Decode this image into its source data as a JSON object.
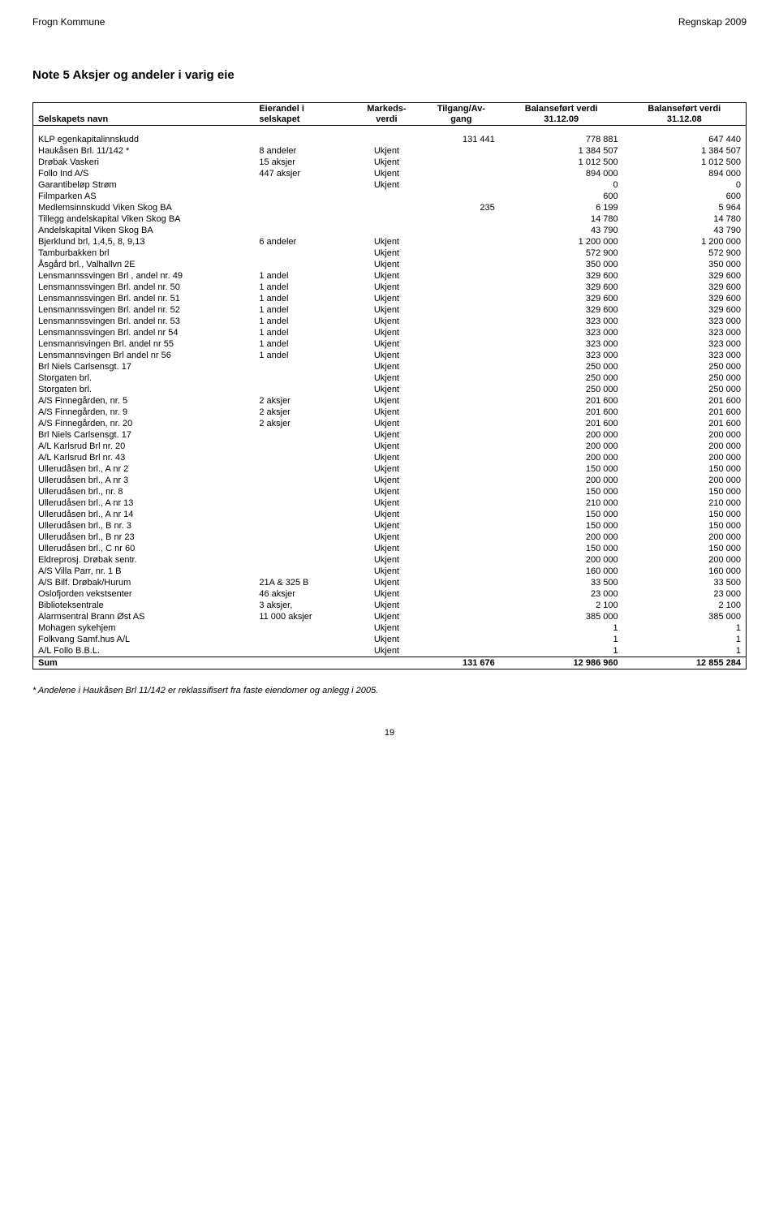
{
  "header": {
    "left": "Frogn Kommune",
    "right": "Regnskap 2009"
  },
  "title": "Note 5   Aksjer og andeler i varig eie",
  "columns": {
    "name": {
      "l1": "",
      "l2": "Selskapets navn"
    },
    "eier": {
      "l1": "Eierandel i",
      "l2": "selskapet"
    },
    "mark": {
      "l1": "Markeds-",
      "l2": "verdi"
    },
    "tilg": {
      "l1": "Tilgang/Av-",
      "l2": "gang"
    },
    "bal1": {
      "l1": "Balanseført verdi",
      "l2": "31.12.09"
    },
    "bal2": {
      "l1": "Balanseført verdi",
      "l2": "31.12.08"
    }
  },
  "rows": [
    {
      "name": "KLP egenkapitalinnskudd",
      "eier": "",
      "mark": "",
      "tilg": "131 441",
      "bal1": "778 881",
      "bal2": "647 440"
    },
    {
      "name": "Haukåsen Brl. 11/142  *",
      "eier": "8 andeler",
      "mark": "Ukjent",
      "tilg": "",
      "bal1": "1 384 507",
      "bal2": "1 384 507"
    },
    {
      "name": "Drøbak Vaskeri",
      "eier": "15 aksjer",
      "mark": "Ukjent",
      "tilg": "",
      "bal1": "1 012 500",
      "bal2": "1 012 500"
    },
    {
      "name": "Follo Ind A/S",
      "eier": "447 aksjer",
      "mark": "Ukjent",
      "tilg": "",
      "bal1": "894 000",
      "bal2": "894 000"
    },
    {
      "name": "Garantibeløp Strøm",
      "eier": "",
      "mark": "Ukjent",
      "tilg": "",
      "bal1": "0",
      "bal2": "0"
    },
    {
      "name": "Filmparken AS",
      "eier": "",
      "mark": "",
      "tilg": "",
      "bal1": "600",
      "bal2": "600"
    },
    {
      "name": "Medlemsinnskudd Viken Skog BA",
      "eier": "",
      "mark": "",
      "tilg": "235",
      "bal1": "6 199",
      "bal2": "5 964"
    },
    {
      "name": "Tillegg andelskapital Viken Skog BA",
      "eier": "",
      "mark": "",
      "tilg": "",
      "bal1": "14 780",
      "bal2": "14 780"
    },
    {
      "name": "Andelskapital Viken Skog BA",
      "eier": "",
      "mark": "",
      "tilg": "",
      "bal1": "43 790",
      "bal2": "43 790"
    },
    {
      "name": "Bjerklund brl, 1,4,5, 8, 9,13",
      "eier": "6 andeler",
      "mark": "Ukjent",
      "tilg": "",
      "bal1": "1 200 000",
      "bal2": "1 200 000"
    },
    {
      "name": "Tamburbakken brl",
      "eier": "",
      "mark": "Ukjent",
      "tilg": "",
      "bal1": "572 900",
      "bal2": "572 900"
    },
    {
      "name": "Åsgård brl., Valhallvn 2E",
      "eier": "",
      "mark": "Ukjent",
      "tilg": "",
      "bal1": "350 000",
      "bal2": "350 000"
    },
    {
      "name": "Lensmannssvingen Brl , andel nr. 49",
      "eier": "1 andel",
      "mark": "Ukjent",
      "tilg": "",
      "bal1": "329 600",
      "bal2": "329 600"
    },
    {
      "name": "Lensmannssvingen Brl. andel nr. 50",
      "eier": "1 andel",
      "mark": "Ukjent",
      "tilg": "",
      "bal1": "329 600",
      "bal2": "329 600"
    },
    {
      "name": "Lensmannssvingen Brl. andel nr. 51",
      "eier": "1 andel",
      "mark": "Ukjent",
      "tilg": "",
      "bal1": "329 600",
      "bal2": "329 600"
    },
    {
      "name": "Lensmannssvingen Brl. andel nr. 52",
      "eier": "1 andel",
      "mark": "Ukjent",
      "tilg": "",
      "bal1": "329 600",
      "bal2": "329 600"
    },
    {
      "name": "Lensmannssvingen Brl. andel nr. 53",
      "eier": "1 andel",
      "mark": "Ukjent",
      "tilg": "",
      "bal1": "323 000",
      "bal2": "323 000"
    },
    {
      "name": "Lensmannssvingen Brl. andel nr 54",
      "eier": "1 andel",
      "mark": "Ukjent",
      "tilg": "",
      "bal1": "323 000",
      "bal2": "323 000"
    },
    {
      "name": "Lensmannsvingen Brl. andel nr 55",
      "eier": "1 andel",
      "mark": "Ukjent",
      "tilg": "",
      "bal1": "323 000",
      "bal2": "323 000"
    },
    {
      "name": "Lensmannsvingen Brl andel nr 56",
      "eier": "1 andel",
      "mark": "Ukjent",
      "tilg": "",
      "bal1": "323 000",
      "bal2": "323 000"
    },
    {
      "name": "Brl Niels Carlsensgt. 17",
      "eier": "",
      "mark": "Ukjent",
      "tilg": "",
      "bal1": "250 000",
      "bal2": "250 000"
    },
    {
      "name": "Storgaten brl.",
      "eier": "",
      "mark": "Ukjent",
      "tilg": "",
      "bal1": "250 000",
      "bal2": "250 000"
    },
    {
      "name": "Storgaten brl.",
      "eier": "",
      "mark": "Ukjent",
      "tilg": "",
      "bal1": "250 000",
      "bal2": "250 000"
    },
    {
      "name": "A/S Finnegården, nr. 5",
      "eier": "2 aksjer",
      "mark": "Ukjent",
      "tilg": "",
      "bal1": "201 600",
      "bal2": "201 600"
    },
    {
      "name": "A/S Finnegården, nr. 9",
      "eier": "2 aksjer",
      "mark": "Ukjent",
      "tilg": "",
      "bal1": "201 600",
      "bal2": "201 600"
    },
    {
      "name": "A/S Finnegården, nr. 20",
      "eier": "2 aksjer",
      "mark": "Ukjent",
      "tilg": "",
      "bal1": "201 600",
      "bal2": "201 600"
    },
    {
      "name": "Brl Niels Carlsensgt. 17",
      "eier": "",
      "mark": "Ukjent",
      "tilg": "",
      "bal1": "200 000",
      "bal2": "200 000"
    },
    {
      "name": "A/L Karlsrud Brl nr. 20",
      "eier": "",
      "mark": "Ukjent",
      "tilg": "",
      "bal1": "200 000",
      "bal2": "200 000"
    },
    {
      "name": "A/L Karlsrud Brl nr. 43",
      "eier": "",
      "mark": "Ukjent",
      "tilg": "",
      "bal1": "200 000",
      "bal2": "200 000"
    },
    {
      "name": "Ullerudåsen brl., A nr 2",
      "eier": "",
      "mark": "Ukjent",
      "tilg": "",
      "bal1": "150 000",
      "bal2": "150 000"
    },
    {
      "name": "Ullerudåsen brl., A nr 3",
      "eier": "",
      "mark": "Ukjent",
      "tilg": "",
      "bal1": "200 000",
      "bal2": "200 000"
    },
    {
      "name": "Ullerudåsen brl., nr. 8",
      "eier": "",
      "mark": "Ukjent",
      "tilg": "",
      "bal1": "150 000",
      "bal2": "150 000"
    },
    {
      "name": "Ullerudåsen brl., A nr 13",
      "eier": "",
      "mark": "Ukjent",
      "tilg": "",
      "bal1": "210 000",
      "bal2": "210 000"
    },
    {
      "name": "Ullerudåsen brl., A nr 14",
      "eier": "",
      "mark": "Ukjent",
      "tilg": "",
      "bal1": "150 000",
      "bal2": "150 000"
    },
    {
      "name": "Ullerudåsen brl., B nr. 3",
      "eier": "",
      "mark": "Ukjent",
      "tilg": "",
      "bal1": "150 000",
      "bal2": "150 000"
    },
    {
      "name": "Ullerudåsen brl., B nr 23",
      "eier": "",
      "mark": "Ukjent",
      "tilg": "",
      "bal1": "200 000",
      "bal2": "200 000"
    },
    {
      "name": "Ullerudåsen brl., C nr 60",
      "eier": "",
      "mark": "Ukjent",
      "tilg": "",
      "bal1": "150 000",
      "bal2": "150 000"
    },
    {
      "name": "Eldreprosj. Drøbak sentr.",
      "eier": "",
      "mark": "Ukjent",
      "tilg": "",
      "bal1": "200 000",
      "bal2": "200 000"
    },
    {
      "name": "A/S Villa Parr, nr. 1 B",
      "eier": "",
      "mark": "Ukjent",
      "tilg": "",
      "bal1": "160 000",
      "bal2": "160 000"
    },
    {
      "name": "A/S Bilf. Drøbak/Hurum",
      "eier": "21A & 325 B",
      "mark": "Ukjent",
      "tilg": "",
      "bal1": "33 500",
      "bal2": "33 500"
    },
    {
      "name": "Oslofjorden vekstsenter",
      "eier": "46 aksjer",
      "mark": "Ukjent",
      "tilg": "",
      "bal1": "23 000",
      "bal2": "23 000"
    },
    {
      "name": "Biblioteksentrale",
      "eier": "3 aksjer,",
      "mark": "Ukjent",
      "tilg": "",
      "bal1": "2 100",
      "bal2": "2 100"
    },
    {
      "name": "Alarmsentral Brann Øst AS",
      "eier": "11 000 aksjer",
      "mark": "Ukjent",
      "tilg": "",
      "bal1": "385 000",
      "bal2": "385 000"
    },
    {
      "name": "Mohagen sykehjem",
      "eier": "",
      "mark": "Ukjent",
      "tilg": "",
      "bal1": "1",
      "bal2": "1"
    },
    {
      "name": "Folkvang Samf.hus A/L",
      "eier": "",
      "mark": "Ukjent",
      "tilg": "",
      "bal1": "1",
      "bal2": "1"
    },
    {
      "name": "A/L Follo B.B.L.",
      "eier": "",
      "mark": "Ukjent",
      "tilg": "",
      "bal1": "1",
      "bal2": "1"
    }
  ],
  "sum": {
    "label": "Sum",
    "tilg": "131 676",
    "bal1": "12 986 960",
    "bal2": "12 855 284"
  },
  "footnote": "* Andelene i Haukåsen Brl 11/142 er reklassifisert fra faste eiendomer og anlegg i 2005.",
  "page_number": "19"
}
